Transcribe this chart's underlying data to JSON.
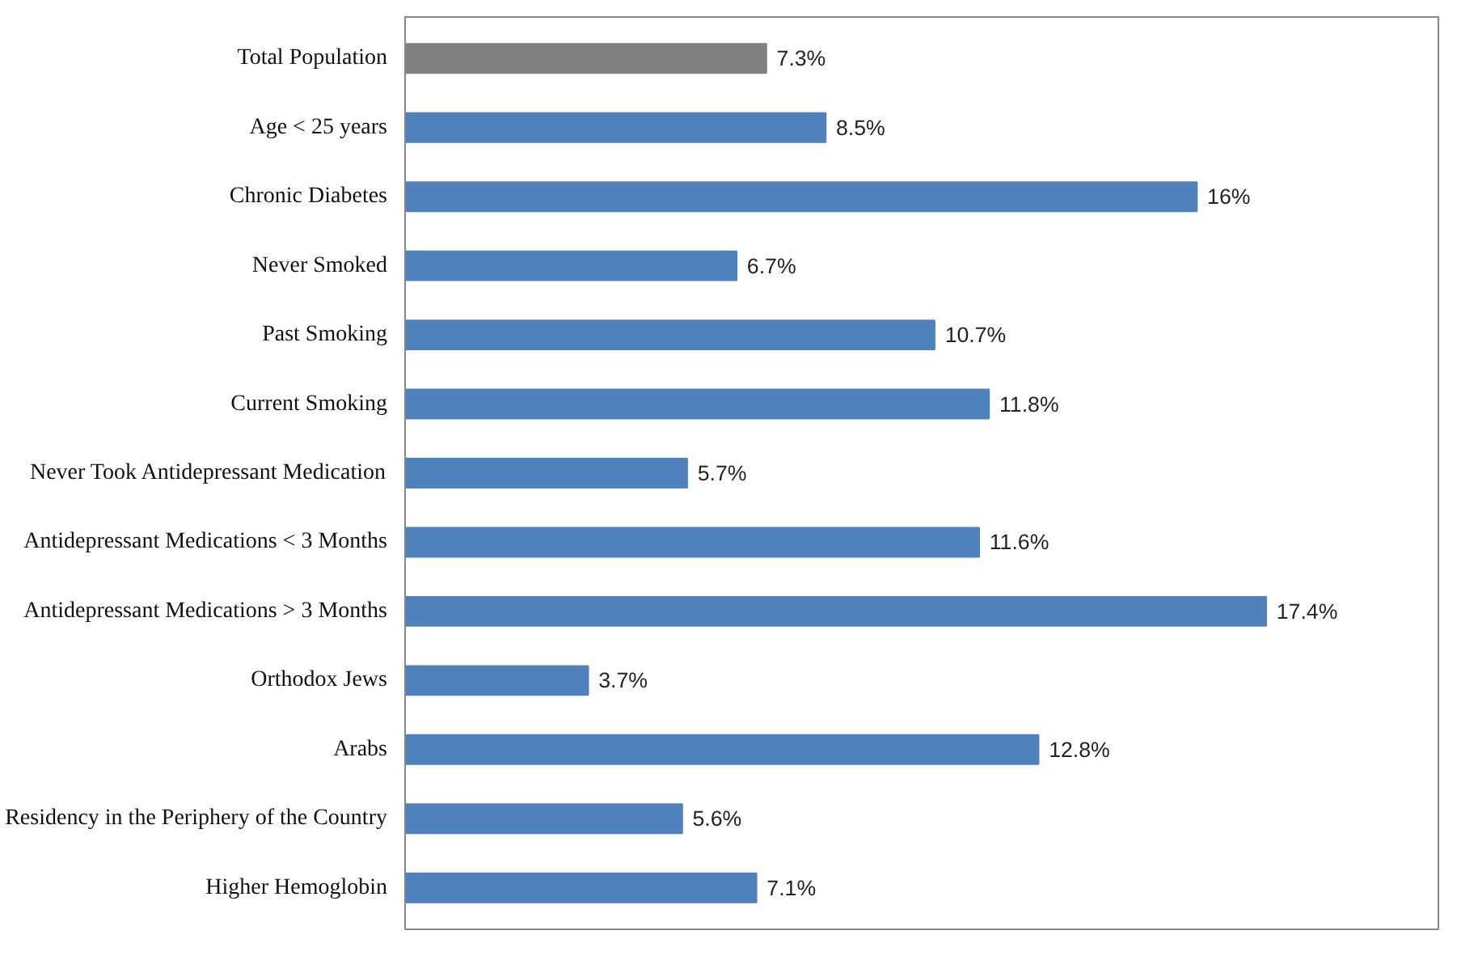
{
  "chart_data": {
    "type": "bar",
    "orientation": "horizontal",
    "categories": [
      "Total Population",
      "Age < 25 years",
      "Chronic Diabetes",
      "Never Smoked",
      "Past Smoking",
      "Current Smoking",
      "Never Took Antidepressant Medication",
      "Antidepressant Medications < 3 Months",
      "Antidepressant Medications > 3 Months",
      "Orthodox Jews",
      "Arabs",
      "Residency in the Periphery of the Country",
      "Higher Hemoglobin"
    ],
    "values": [
      7.3,
      8.5,
      16,
      6.7,
      10.7,
      11.8,
      5.7,
      11.6,
      17.4,
      3.7,
      12.8,
      5.6,
      7.1
    ],
    "value_labels": [
      "7.3%",
      "8.5%",
      "16%",
      "6.7%",
      "10.7%",
      "11.8%",
      "5.7%",
      "11.6%",
      "17.4%",
      "3.7%",
      "12.8%",
      "5.6%",
      "7.1%"
    ],
    "colors": [
      "#808080",
      "#4f81bd",
      "#4f81bd",
      "#4f81bd",
      "#4f81bd",
      "#4f81bd",
      "#4f81bd",
      "#4f81bd",
      "#4f81bd",
      "#4f81bd",
      "#4f81bd",
      "#4f81bd",
      "#4f81bd"
    ],
    "grid": false
  }
}
